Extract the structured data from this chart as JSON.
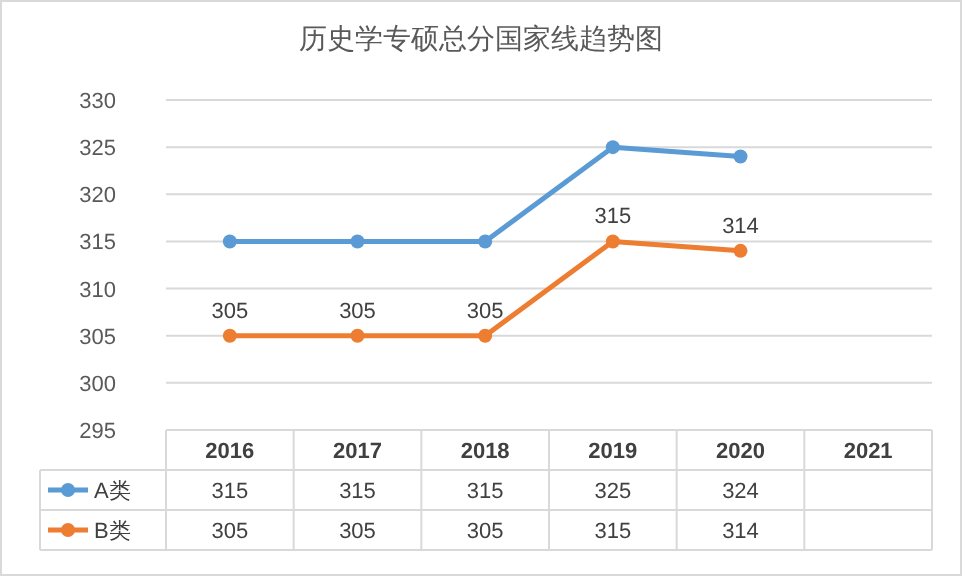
{
  "chart_data": {
    "type": "line",
    "title": "历史学专硕总分国家线趋势图",
    "categories": [
      "2016",
      "2017",
      "2018",
      "2019",
      "2020",
      "2021"
    ],
    "series": [
      {
        "name": "A类",
        "color": "#5b9bd5",
        "values": [
          315,
          315,
          315,
          325,
          324,
          null
        ]
      },
      {
        "name": "B类",
        "color": "#ed7d31",
        "values": [
          305,
          305,
          305,
          315,
          314,
          null
        ]
      }
    ],
    "annotations": [
      {
        "text": "305",
        "x": "2016",
        "y": 305
      },
      {
        "text": "305",
        "x": "2017",
        "y": 305
      },
      {
        "text": "305",
        "x": "2018",
        "y": 305
      },
      {
        "text": "315",
        "x": "2019",
        "y": 315
      },
      {
        "text": "314",
        "x": "2020",
        "y": 314
      }
    ],
    "ylim": [
      295,
      330
    ],
    "yticks": [
      295,
      300,
      305,
      310,
      315,
      320,
      325,
      330
    ],
    "grid": "y",
    "legend": "bottom",
    "marker": "circle",
    "line_style": "solid",
    "data_labels": true
  }
}
